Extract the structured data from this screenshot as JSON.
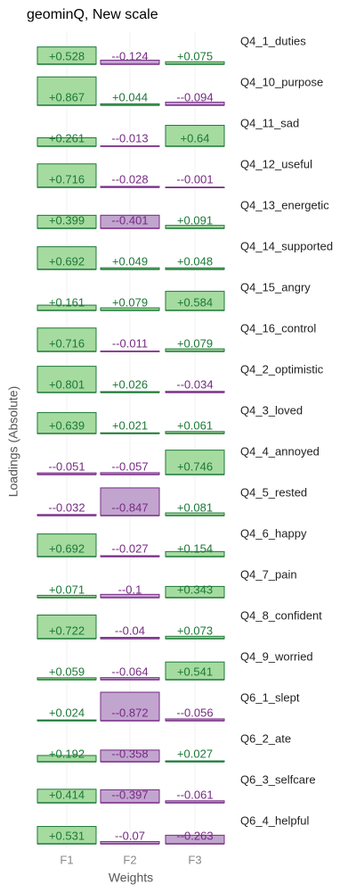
{
  "chart_data": {
    "type": "faceted-bar",
    "title": "geominQ, New scale",
    "y_label": "Loadings (Absolute)",
    "x_label": "Weights",
    "categories": [
      "F1",
      "F2",
      "F3"
    ],
    "ylim": [
      0,
      0.9
    ],
    "colors": {
      "positive_fill": "#a6dba0",
      "positive_stroke": "#1b7837",
      "negative_fill": "#c2a5cf",
      "negative_stroke": "#762a83"
    },
    "series": [
      {
        "name": "Q4_1_duties",
        "values": [
          0.528,
          -0.124,
          0.075
        ],
        "value_labels": [
          "+0.528",
          "--0.124",
          "+0.075"
        ]
      },
      {
        "name": "Q4_10_purpose",
        "values": [
          0.867,
          0.044,
          -0.094
        ],
        "value_labels": [
          "+0.867",
          "+0.044",
          "--0.094"
        ]
      },
      {
        "name": "Q4_11_sad",
        "values": [
          0.261,
          -0.013,
          0.64
        ],
        "value_labels": [
          "+0.261",
          "--0.013",
          "+0.64"
        ]
      },
      {
        "name": "Q4_12_useful",
        "values": [
          0.716,
          -0.028,
          -0.001
        ],
        "value_labels": [
          "+0.716",
          "--0.028",
          "--0.001"
        ]
      },
      {
        "name": "Q4_13_energetic",
        "values": [
          0.399,
          -0.401,
          0.091
        ],
        "value_labels": [
          "+0.399",
          "--0.401",
          "+0.091"
        ]
      },
      {
        "name": "Q4_14_supported",
        "values": [
          0.692,
          0.049,
          0.048
        ],
        "value_labels": [
          "+0.692",
          "+0.049",
          "+0.048"
        ]
      },
      {
        "name": "Q4_15_angry",
        "values": [
          0.161,
          0.079,
          0.584
        ],
        "value_labels": [
          "+0.161",
          "+0.079",
          "+0.584"
        ]
      },
      {
        "name": "Q4_16_control",
        "values": [
          0.716,
          -0.011,
          0.079
        ],
        "value_labels": [
          "+0.716",
          "--0.011",
          "+0.079"
        ]
      },
      {
        "name": "Q4_2_optimistic",
        "values": [
          0.801,
          0.026,
          -0.034
        ],
        "value_labels": [
          "+0.801",
          "+0.026",
          "--0.034"
        ]
      },
      {
        "name": "Q4_3_loved",
        "values": [
          0.639,
          0.021,
          0.061
        ],
        "value_labels": [
          "+0.639",
          "+0.021",
          "+0.061"
        ]
      },
      {
        "name": "Q4_4_annoyed",
        "values": [
          -0.051,
          -0.057,
          0.746
        ],
        "value_labels": [
          "--0.051",
          "--0.057",
          "+0.746"
        ]
      },
      {
        "name": "Q4_5_rested",
        "values": [
          -0.032,
          -0.847,
          0.081
        ],
        "value_labels": [
          "--0.032",
          "--0.847",
          "+0.081"
        ]
      },
      {
        "name": "Q4_6_happy",
        "values": [
          0.692,
          -0.027,
          0.154
        ],
        "value_labels": [
          "+0.692",
          "--0.027",
          "+0.154"
        ]
      },
      {
        "name": "Q4_7_pain",
        "values": [
          0.071,
          -0.1,
          0.343
        ],
        "value_labels": [
          "+0.071",
          "--0.1",
          "+0.343"
        ]
      },
      {
        "name": "Q4_8_confident",
        "values": [
          0.722,
          -0.04,
          0.073
        ],
        "value_labels": [
          "+0.722",
          "--0.04",
          "+0.073"
        ]
      },
      {
        "name": "Q4_9_worried",
        "values": [
          0.059,
          -0.064,
          0.541
        ],
        "value_labels": [
          "+0.059",
          "--0.064",
          "+0.541"
        ]
      },
      {
        "name": "Q6_1_slept",
        "values": [
          0.024,
          -0.872,
          -0.056
        ],
        "value_labels": [
          "+0.024",
          "--0.872",
          "--0.056"
        ]
      },
      {
        "name": "Q6_2_ate",
        "values": [
          0.192,
          -0.358,
          0.027
        ],
        "value_labels": [
          "+0.192",
          "--0.358",
          "+0.027"
        ]
      },
      {
        "name": "Q6_3_selfcare",
        "values": [
          0.414,
          -0.397,
          -0.061
        ],
        "value_labels": [
          "+0.414",
          "--0.397",
          "--0.061"
        ]
      },
      {
        "name": "Q6_4_helpful",
        "values": [
          0.531,
          -0.07,
          -0.263
        ],
        "value_labels": [
          "+0.531",
          "--0.07",
          "--0.263"
        ]
      }
    ]
  }
}
